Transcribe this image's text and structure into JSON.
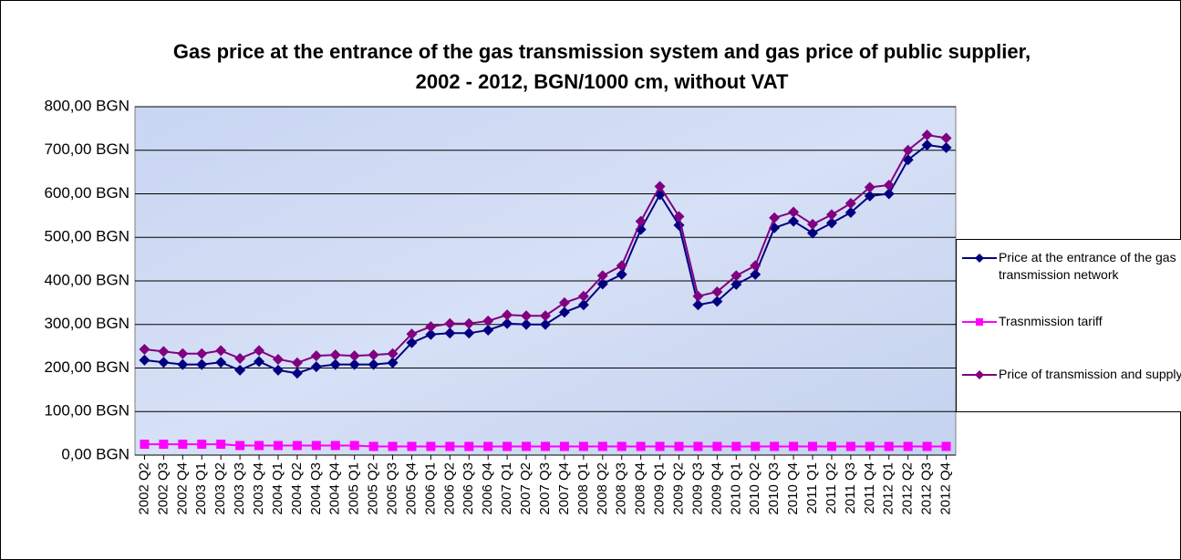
{
  "chart_data": {
    "type": "line",
    "title": "Gas price at the entrance of the gas transmission system and gas price of public supplier, 2002 - 2012, BGN/1000 cm, without VAT",
    "categories": [
      "2002 Q2",
      "2002 Q3",
      "2002 Q4",
      "2003 Q1",
      "2003 Q2",
      "2003 Q3",
      "2003 Q4",
      "2004 Q1",
      "2004 Q2",
      "2004 Q3",
      "2004 Q4",
      "2005 Q1",
      "2005 Q2",
      "2005 Q3",
      "2005 Q4",
      "2006 Q1",
      "2006 Q2",
      "2006 Q3",
      "2006 Q4",
      "2007 Q1",
      "2007 Q2",
      "2007 Q3",
      "2007 Q4",
      "2008 Q1",
      "2008 Q2",
      "2008 Q3",
      "2008 Q4",
      "2009 Q1",
      "2009 Q2",
      "2009 Q3",
      "2009 Q4",
      "2010 Q1",
      "2010 Q2",
      "2010 Q3",
      "2010 Q4",
      "2011 Q1",
      "2011 Q2",
      "2011 Q3",
      "2011 Q4",
      "2012 Q1",
      "2012 Q2",
      "2012 Q3",
      "2012 Q4"
    ],
    "series": [
      {
        "name": "Price at the entrance of the gas transmission network",
        "color": "#000080",
        "marker": "diamond",
        "values": [
          218,
          213,
          208,
          208,
          213,
          195,
          215,
          195,
          188,
          203,
          208,
          208,
          208,
          212,
          258,
          277,
          280,
          280,
          287,
          302,
          300,
          300,
          328,
          345,
          393,
          415,
          518,
          598,
          528,
          345,
          353,
          392,
          415,
          522,
          537,
          510,
          533,
          557,
          595,
          600,
          678,
          712,
          706
        ]
      },
      {
        "name": "Trasnmission tariff",
        "color": "#ff00ff",
        "marker": "square",
        "values": [
          25,
          25,
          25,
          25,
          25,
          22,
          22,
          22,
          22,
          22,
          22,
          22,
          20,
          20,
          20,
          20,
          20,
          20,
          20,
          20,
          20,
          20,
          20,
          20,
          20,
          20,
          20,
          20,
          20,
          20,
          20,
          20,
          20,
          20,
          20,
          20,
          20,
          20,
          20,
          20,
          20,
          20,
          20
        ]
      },
      {
        "name": "Price of transmission and supply",
        "color": "#800080",
        "marker": "diamond",
        "values": [
          243,
          238,
          233,
          233,
          240,
          222,
          240,
          220,
          212,
          228,
          230,
          228,
          230,
          233,
          278,
          295,
          302,
          302,
          308,
          322,
          320,
          320,
          350,
          365,
          412,
          435,
          537,
          617,
          548,
          365,
          375,
          412,
          435,
          545,
          558,
          530,
          552,
          578,
          615,
          620,
          700,
          735,
          728
        ]
      }
    ],
    "ylim": [
      0,
      800
    ],
    "yticks": [
      {
        "value": 0,
        "label": "0,00 BGN"
      },
      {
        "value": 100,
        "label": "100,00 BGN"
      },
      {
        "value": 200,
        "label": "200,00 BGN"
      },
      {
        "value": 300,
        "label": "300,00 BGN"
      },
      {
        "value": 400,
        "label": "400,00 BGN"
      },
      {
        "value": 500,
        "label": "500,00 BGN"
      },
      {
        "value": 600,
        "label": "600,00 BGN"
      },
      {
        "value": 700,
        "label": "700,00 BGN"
      },
      {
        "value": 800,
        "label": "800,00 BGN"
      }
    ],
    "grid": true,
    "legend": "right"
  }
}
